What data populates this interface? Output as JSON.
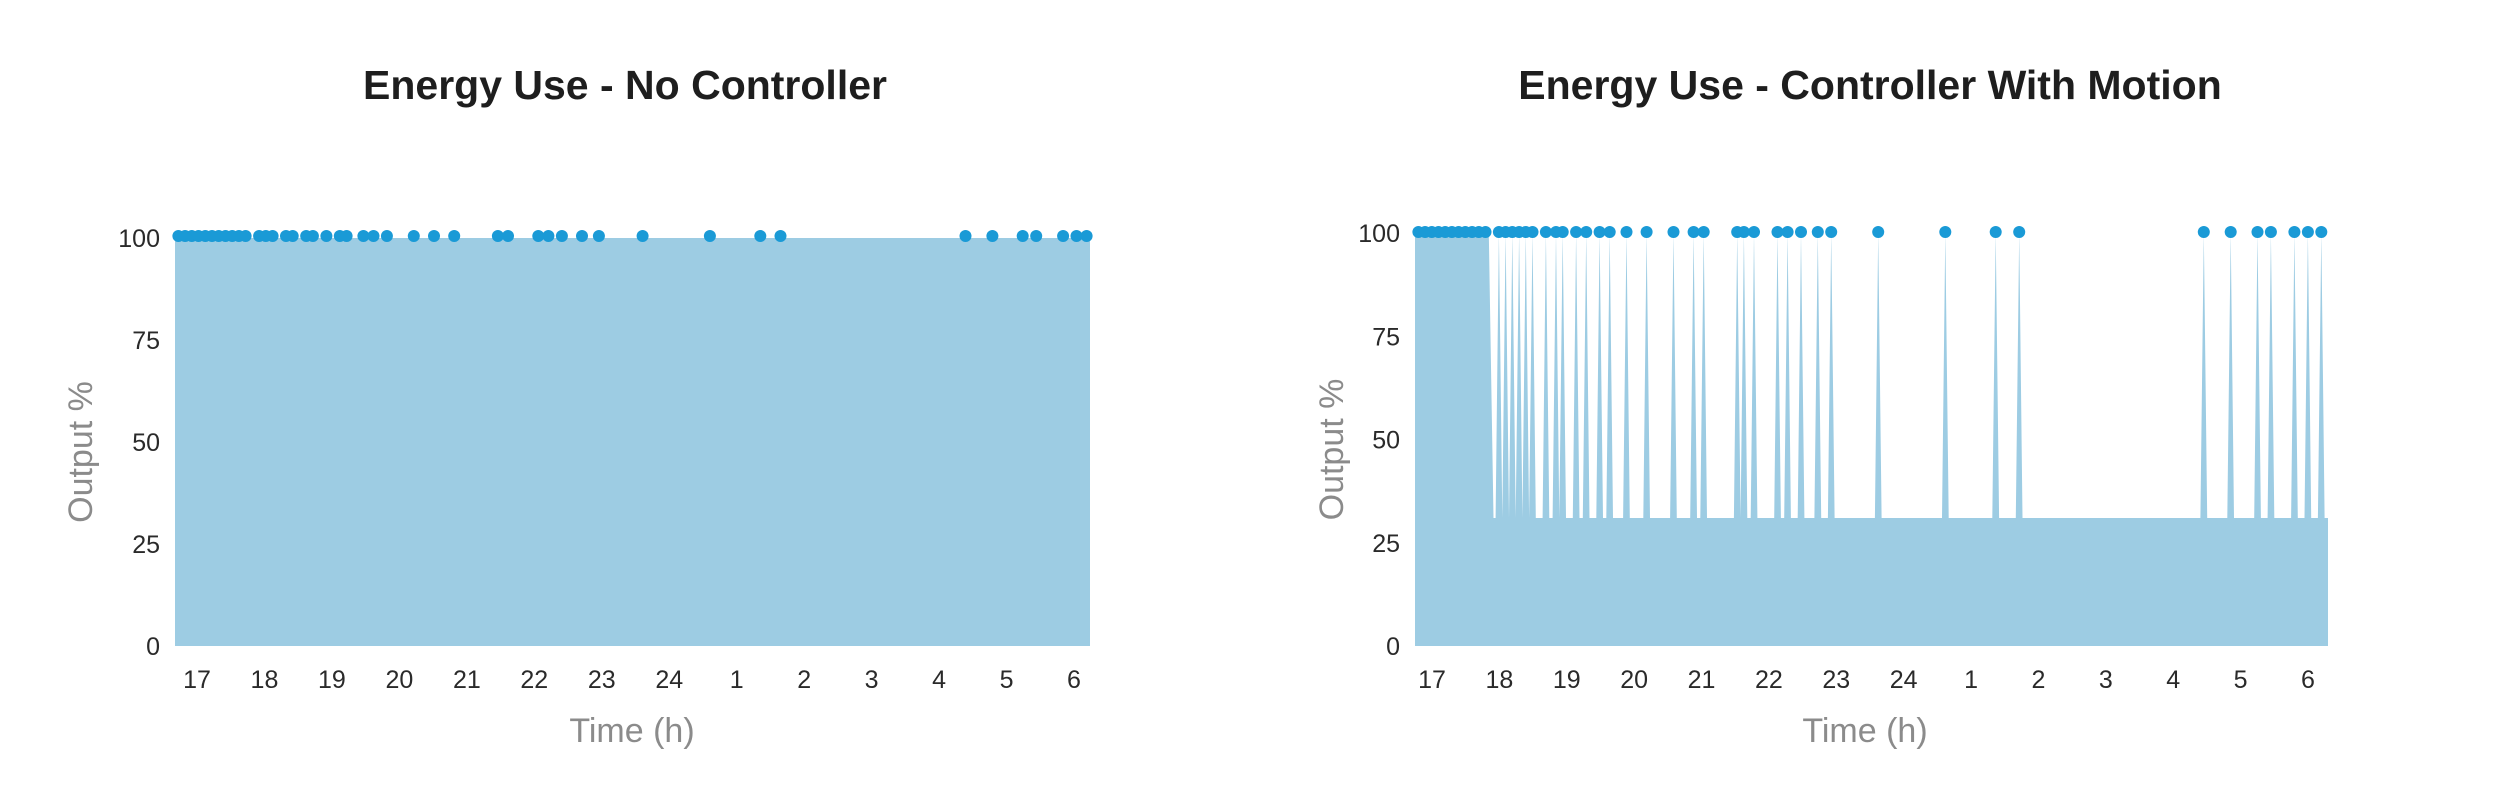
{
  "colors": {
    "area": "#9dcce3",
    "dot": "#1a9ad6",
    "text": "#1e1e1e",
    "axis_label": "#8b8b8b"
  },
  "chart_data": [
    {
      "type": "area",
      "title": "Energy Use - No Controller",
      "xlabel": "Time (h)",
      "ylabel": "Output %",
      "x_ticks": [
        "17",
        "18",
        "19",
        "20",
        "21",
        "22",
        "23",
        "24",
        "1",
        "2",
        "3",
        "4",
        "5",
        "6"
      ],
      "y_ticks": [
        "0",
        "25",
        "50",
        "75",
        "100"
      ],
      "ylim": [
        0,
        100
      ],
      "xlim": [
        16.65,
        30.25
      ],
      "baseline": 100,
      "series": [
        {
          "points": [
            [
              16.65,
              100
            ],
            [
              30.25,
              100
            ]
          ]
        }
      ],
      "motion_events": [
        16.7,
        16.8,
        16.9,
        17.0,
        17.1,
        17.2,
        17.3,
        17.4,
        17.5,
        17.6,
        17.7,
        17.9,
        18.0,
        18.1,
        18.3,
        18.4,
        18.6,
        18.7,
        18.9,
        19.1,
        19.2,
        19.45,
        19.6,
        19.8,
        20.2,
        20.5,
        20.8,
        21.45,
        21.6,
        22.05,
        22.2,
        22.4,
        22.7,
        22.95,
        23.6,
        24.6,
        25.35,
        25.65,
        28.4,
        28.8,
        29.25,
        29.45,
        29.85,
        30.05,
        30.2
      ]
    },
    {
      "type": "area",
      "title": "Energy Use - Controller With Motion",
      "xlabel": "Time (h)",
      "ylabel": "Output %",
      "x_ticks": [
        "17",
        "18",
        "19",
        "20",
        "21",
        "22",
        "23",
        "24",
        "1",
        "2",
        "3",
        "4",
        "5",
        "6"
      ],
      "y_ticks": [
        "0",
        "25",
        "50",
        "75",
        "100"
      ],
      "ylim": [
        0,
        100
      ],
      "xlim": [
        16.65,
        30.25
      ],
      "baseline": 31,
      "hold_until": 17.75,
      "series": [
        {
          "points": [
            [
              16.65,
              100
            ],
            [
              17.75,
              100
            ],
            [
              17.85,
              31
            ],
            [
              30.25,
              31
            ]
          ]
        }
      ],
      "motion_events": [
        16.7,
        16.8,
        16.9,
        17.0,
        17.1,
        17.2,
        17.3,
        17.4,
        17.5,
        17.6,
        17.7,
        17.9,
        18.0,
        18.1,
        18.2,
        18.3,
        18.4,
        18.6,
        18.75,
        18.85,
        19.05,
        19.2,
        19.4,
        19.55,
        19.8,
        20.1,
        20.5,
        20.8,
        20.95,
        21.45,
        21.55,
        21.7,
        22.05,
        22.2,
        22.4,
        22.65,
        22.85,
        23.55,
        24.55,
        25.3,
        25.65,
        28.4,
        28.8,
        29.2,
        29.4,
        29.75,
        29.95,
        30.15
      ]
    }
  ]
}
